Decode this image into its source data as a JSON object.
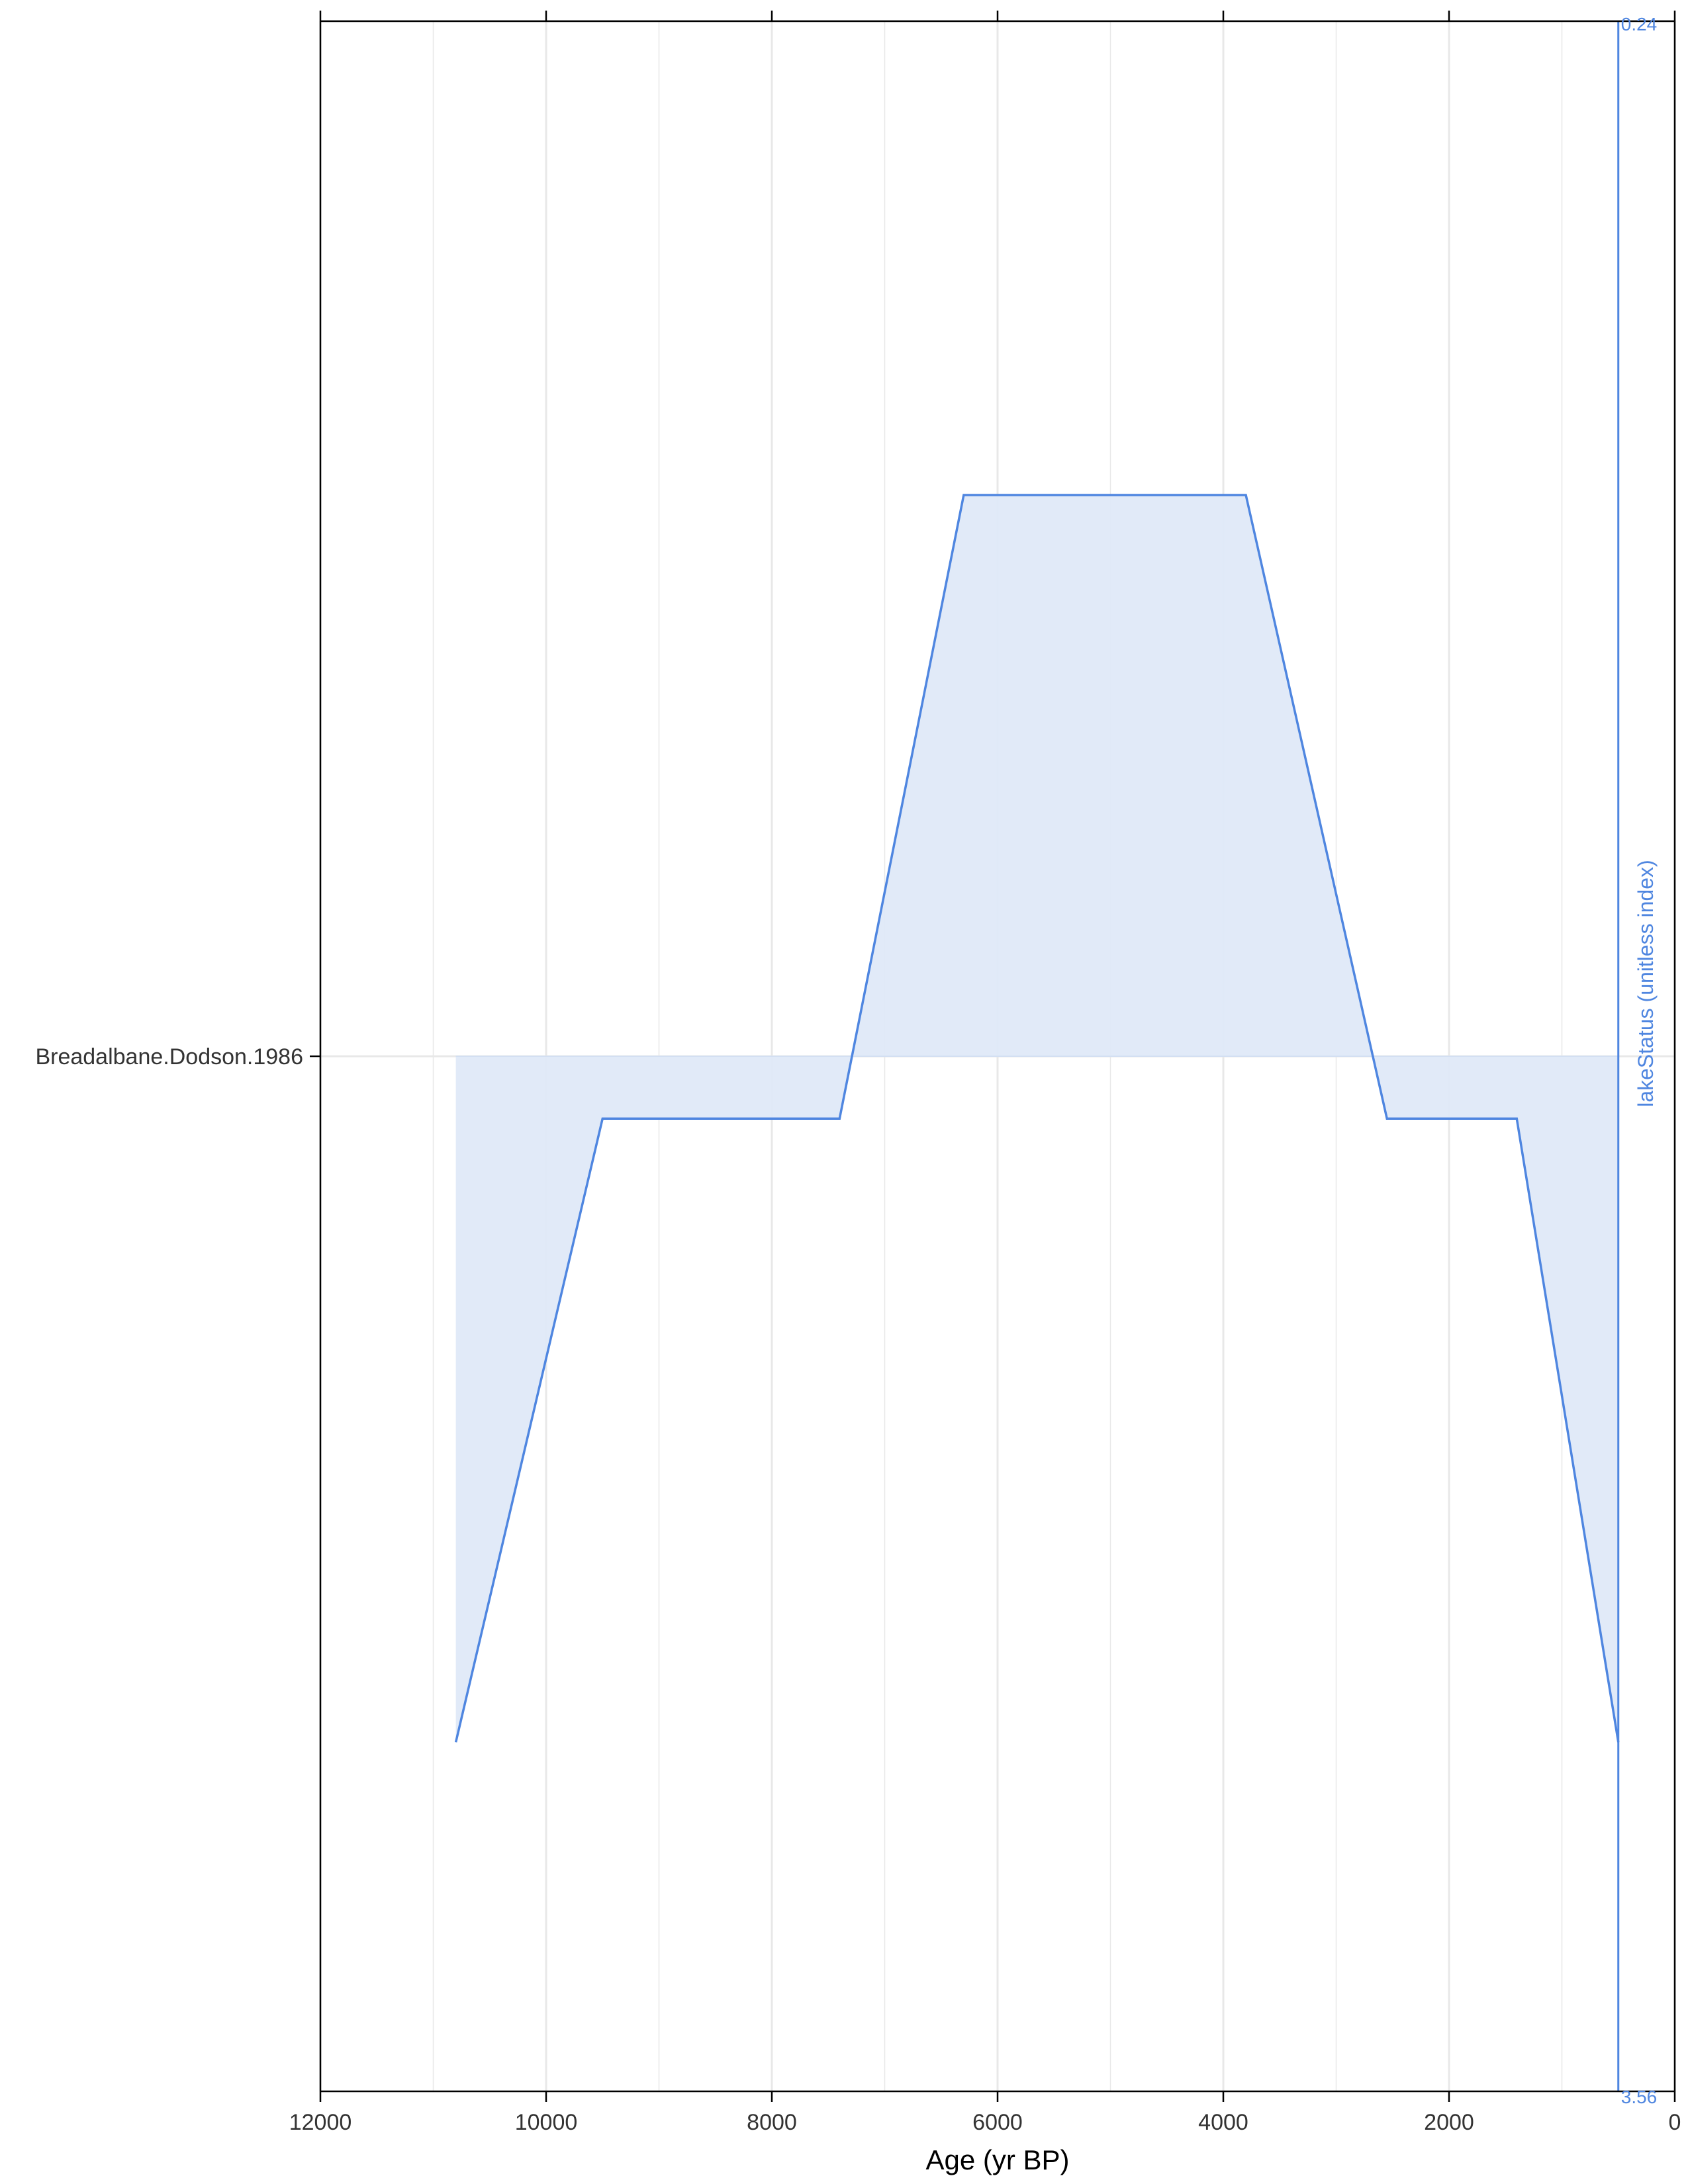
{
  "chart_data": {
    "type": "area",
    "xlabel": "Age (yr BP)",
    "x_ticks": [
      12000,
      10000,
      8000,
      6000,
      4000,
      2000,
      0
    ],
    "x_tick_labels": [
      "12000",
      "10000",
      "8000",
      "6000",
      "4000",
      "2000",
      "0"
    ],
    "xlim": [
      12000,
      0
    ],
    "x_reversed": true,
    "grid": true,
    "site_label": "Breadalbane.Dodson.1986",
    "right_axis": {
      "title": "lakeStatus (unitless index)",
      "color": "#4f86e0",
      "ylim": [
        0.24,
        3.56
      ],
      "tick_labels": [
        "0.24",
        "3.56"
      ],
      "baseline": 1.9,
      "reversed": true
    },
    "series": [
      {
        "x": [
          10800,
          9500,
          7400,
          6300,
          3800,
          2550,
          1400,
          500
        ],
        "y": [
          3.0,
          2.0,
          2.0,
          1.0,
          1.0,
          2.0,
          2.0,
          3.0
        ]
      }
    ],
    "colors": {
      "line": "#4f86e0",
      "fill": "#dfe9f8",
      "grid": "#e8e8e8",
      "axis": "#000000"
    }
  }
}
